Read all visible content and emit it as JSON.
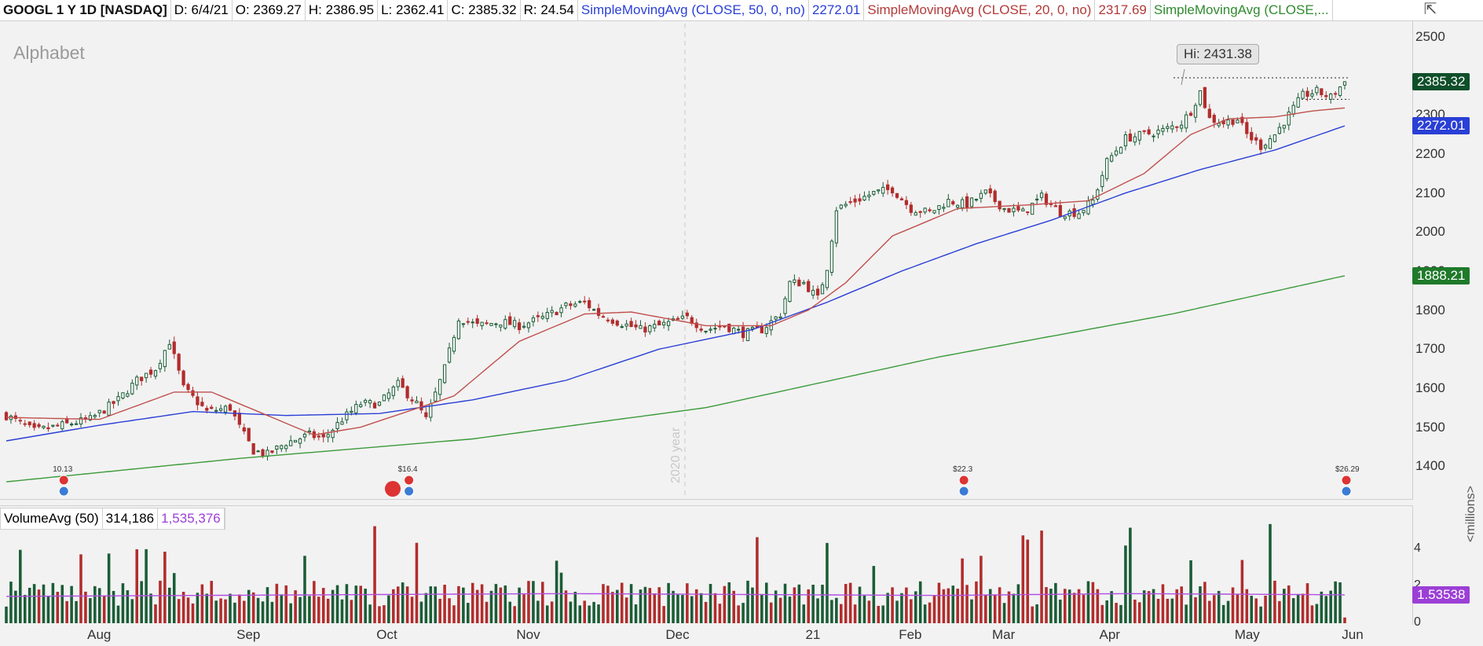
{
  "header": {
    "symbol": "GOOGL 1 Y 1D [NASDAQ]",
    "date": "D: 6/4/21",
    "open": "O: 2369.27",
    "high": "H: 2386.95",
    "low": "L: 2362.41",
    "close": "C: 2385.32",
    "range": "R: 24.54",
    "sma50_label": "SimpleMovingAvg (CLOSE, 50, 0, no)",
    "sma50_value": "2272.01",
    "sma20_label": "SimpleMovingAvg (CLOSE, 20, 0, no)",
    "sma20_value": "2317.69",
    "sma200_label": "SimpleMovingAvg (CLOSE,..."
  },
  "company_name": "Alphabet",
  "hi_callout": "Hi: 2431.38",
  "year_marker": "2020 year",
  "badges": {
    "last_price": "2385.32",
    "sma50": "2272.01",
    "sma200": "1888.21",
    "volume_avg": "1.53538"
  },
  "volume_header": {
    "label": "VolumeAvg (50)",
    "volume": "314,186",
    "avg": "1,535,376"
  },
  "volume_unit": "<millions>",
  "earnings_labels": [
    "10.13",
    "$16.4",
    "$22.3",
    "$26.29"
  ],
  "colors": {
    "up": "#1a5c36",
    "down": "#b22c2c",
    "sma50": "#2a3fd6",
    "sma20": "#c0504d",
    "sma200": "#3a9a3a",
    "vol_avg": "#b04fe0",
    "badge_price": "#0f4f2a",
    "badge_sma50": "#2a3fd6",
    "badge_sma200": "#1f7a2a",
    "badge_vol": "#9c3fd6"
  },
  "chart_data": {
    "type": "candlestick",
    "y_ticks": [
      "2500",
      "2300",
      "2200",
      "2100",
      "2000",
      "1900",
      "1800",
      "1700",
      "1600",
      "1500",
      "1400"
    ],
    "ylim": [
      1330,
      2530
    ],
    "x_ticks": [
      "Aug",
      "Sep",
      "Oct",
      "Nov",
      "Dec",
      "21",
      "Feb",
      "Mar",
      "Apr",
      "May",
      "Jun"
    ],
    "volume_ticks": [
      "4",
      "2",
      "0"
    ],
    "volume_ylim": [
      0,
      4.8
    ],
    "close_keyframes": [
      [
        0,
        1530
      ],
      [
        6,
        1490
      ],
      [
        12,
        1505
      ],
      [
        18,
        1520
      ],
      [
        24,
        1570
      ],
      [
        28,
        1620
      ],
      [
        32,
        1650
      ],
      [
        35,
        1720
      ],
      [
        38,
        1600
      ],
      [
        43,
        1540
      ],
      [
        48,
        1550
      ],
      [
        50,
        1500
      ],
      [
        53,
        1440
      ],
      [
        56,
        1430
      ],
      [
        60,
        1460
      ],
      [
        65,
        1480
      ],
      [
        68,
        1470
      ],
      [
        72,
        1520
      ],
      [
        76,
        1560
      ],
      [
        80,
        1560
      ],
      [
        84,
        1610
      ],
      [
        88,
        1560
      ],
      [
        90,
        1520
      ],
      [
        94,
        1650
      ],
      [
        97,
        1780
      ],
      [
        101,
        1760
      ],
      [
        106,
        1770
      ],
      [
        110,
        1760
      ],
      [
        115,
        1780
      ],
      [
        120,
        1810
      ],
      [
        124,
        1820
      ],
      [
        127,
        1790
      ],
      [
        131,
        1770
      ],
      [
        136,
        1750
      ],
      [
        140,
        1760
      ],
      [
        146,
        1780
      ],
      [
        150,
        1750
      ],
      [
        154,
        1760
      ],
      [
        158,
        1740
      ],
      [
        162,
        1750
      ],
      [
        166,
        1790
      ],
      [
        168,
        1870
      ],
      [
        171,
        1870
      ],
      [
        174,
        1830
      ],
      [
        176,
        1910
      ],
      [
        178,
        2060
      ],
      [
        182,
        2080
      ],
      [
        186,
        2100
      ],
      [
        190,
        2110
      ],
      [
        194,
        2060
      ],
      [
        198,
        2050
      ],
      [
        202,
        2080
      ],
      [
        206,
        2070
      ],
      [
        210,
        2100
      ],
      [
        214,
        2060
      ],
      [
        218,
        2050
      ],
      [
        222,
        2090
      ],
      [
        226,
        2050
      ],
      [
        230,
        2050
      ],
      [
        233,
        2080
      ],
      [
        236,
        2180
      ],
      [
        240,
        2240
      ],
      [
        244,
        2250
      ],
      [
        248,
        2260
      ],
      [
        252,
        2280
      ],
      [
        254,
        2310
      ],
      [
        256,
        2360
      ],
      [
        258,
        2290
      ],
      [
        261,
        2280
      ],
      [
        264,
        2290
      ],
      [
        266,
        2250
      ],
      [
        269,
        2220
      ],
      [
        272,
        2250
      ],
      [
        275,
        2300
      ],
      [
        278,
        2350
      ],
      [
        281,
        2360
      ],
      [
        284,
        2345
      ],
      [
        287,
        2385
      ]
    ],
    "sma20_keyframes": [
      [
        0,
        1525
      ],
      [
        20,
        1520
      ],
      [
        36,
        1590
      ],
      [
        44,
        1590
      ],
      [
        56,
        1530
      ],
      [
        66,
        1480
      ],
      [
        76,
        1500
      ],
      [
        86,
        1540
      ],
      [
        96,
        1580
      ],
      [
        110,
        1720
      ],
      [
        124,
        1790
      ],
      [
        134,
        1795
      ],
      [
        150,
        1760
      ],
      [
        164,
        1760
      ],
      [
        172,
        1800
      ],
      [
        180,
        1870
      ],
      [
        190,
        1990
      ],
      [
        204,
        2060
      ],
      [
        220,
        2070
      ],
      [
        232,
        2080
      ],
      [
        244,
        2150
      ],
      [
        254,
        2250
      ],
      [
        262,
        2290
      ],
      [
        272,
        2295
      ],
      [
        280,
        2310
      ],
      [
        287,
        2318
      ]
    ],
    "sma50_keyframes": [
      [
        0,
        1465
      ],
      [
        20,
        1505
      ],
      [
        40,
        1540
      ],
      [
        60,
        1530
      ],
      [
        80,
        1535
      ],
      [
        100,
        1570
      ],
      [
        120,
        1620
      ],
      [
        140,
        1700
      ],
      [
        160,
        1750
      ],
      [
        176,
        1820
      ],
      [
        192,
        1900
      ],
      [
        208,
        1970
      ],
      [
        224,
        2030
      ],
      [
        240,
        2100
      ],
      [
        256,
        2160
      ],
      [
        272,
        2210
      ],
      [
        287,
        2272
      ]
    ],
    "sma200_keyframes": [
      [
        0,
        1360
      ],
      [
        50,
        1420
      ],
      [
        100,
        1470
      ],
      [
        150,
        1550
      ],
      [
        200,
        1680
      ],
      [
        250,
        1790
      ],
      [
        287,
        1888
      ]
    ],
    "volume_avg_keyframes": [
      [
        0,
        1.45
      ],
      [
        40,
        1.5
      ],
      [
        80,
        1.55
      ],
      [
        120,
        1.6
      ],
      [
        160,
        1.55
      ],
      [
        200,
        1.5
      ],
      [
        240,
        1.6
      ],
      [
        287,
        1.535
      ]
    ]
  }
}
